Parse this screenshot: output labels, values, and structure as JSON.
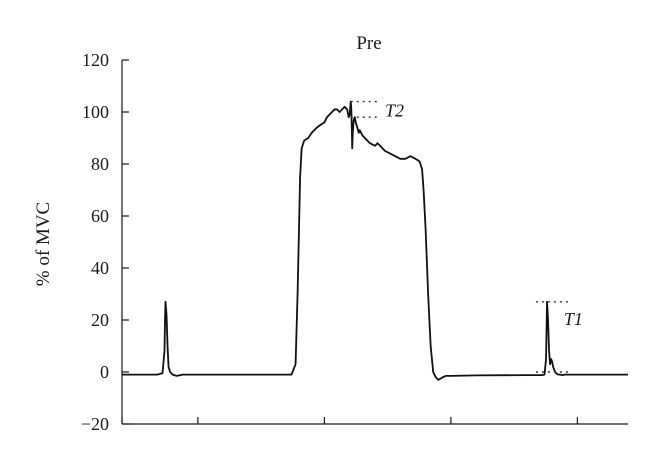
{
  "chart_data": {
    "type": "line",
    "title": "Pre",
    "xlabel": "",
    "ylabel": "% of MVC",
    "xlim": [
      0,
      1000
    ],
    "ylim": [
      -20,
      120
    ],
    "yticks": [
      -20,
      0,
      20,
      40,
      60,
      80,
      100,
      120
    ],
    "ytick_labels": [
      "−20",
      "0",
      "20",
      "40",
      "60",
      "80",
      "100",
      "120"
    ],
    "xticks": [
      0,
      150,
      400,
      650,
      900
    ],
    "grid": false,
    "legend": "none",
    "series": [
      {
        "color": "#111111",
        "x": [
          0,
          70,
          80,
          84,
          85,
          86,
          88,
          90,
          92,
          95,
          100,
          108,
          120,
          200,
          300,
          335,
          343,
          347,
          352,
          355,
          360,
          368,
          375,
          385,
          392,
          400,
          405,
          410,
          415,
          420,
          425,
          430,
          435,
          440,
          445,
          448,
          450,
          452,
          453,
          454,
          455,
          456,
          458,
          460,
          462,
          465,
          468,
          470,
          475,
          480,
          490,
          500,
          505,
          510,
          515,
          520,
          530,
          540,
          550,
          560,
          570,
          580,
          588,
          593,
          596,
          600,
          605,
          610,
          615,
          620,
          625,
          630,
          634,
          640,
          650,
          700,
          800,
          830,
          835,
          838,
          840,
          842,
          844,
          846,
          848,
          850,
          852,
          854,
          856,
          858,
          862,
          866,
          870,
          875,
          880,
          890,
          900,
          950,
          1000
        ],
        "y": [
          -1,
          -1,
          -0.5,
          8,
          20,
          27,
          22,
          10,
          2,
          0,
          -1,
          -1.5,
          -1,
          -1,
          -1,
          -1,
          3,
          30,
          75,
          86,
          89,
          90,
          92,
          94,
          95,
          96,
          98,
          99,
          100,
          101,
          101,
          100,
          101,
          102,
          101,
          98,
          99,
          104,
          102,
          95,
          86,
          92,
          97,
          98,
          96,
          94,
          92,
          93,
          91,
          90,
          88,
          87,
          88,
          87,
          86,
          85,
          84,
          83,
          82,
          82,
          83,
          82,
          81,
          78,
          70,
          55,
          30,
          10,
          0,
          -2,
          -3,
          -2.5,
          -2,
          -1.5,
          -1.5,
          -1.3,
          -1.2,
          -1.2,
          -1,
          5,
          27,
          20,
          8,
          3,
          5,
          4,
          2,
          1,
          0,
          -0.5,
          -1,
          -1,
          -1.2,
          -1,
          -1,
          -1,
          -1,
          -1,
          -1
        ]
      }
    ],
    "annotations": [
      {
        "text": "T2",
        "peak": 104,
        "baseline": 98,
        "x_start": 452,
        "x_end": 508
      },
      {
        "text": "T1",
        "peak": 27,
        "baseline": 0,
        "x_start": 818,
        "x_end": 888
      }
    ]
  }
}
